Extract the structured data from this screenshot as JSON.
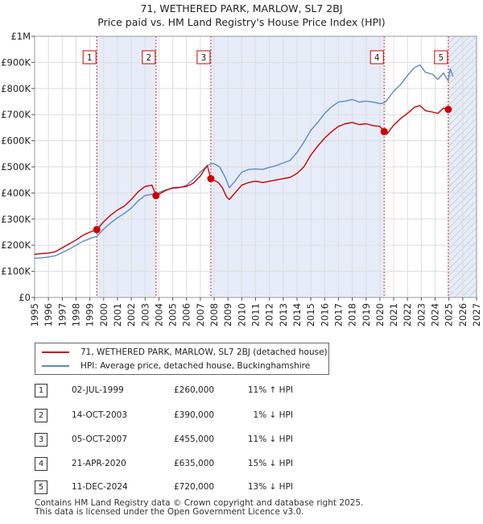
{
  "chart_data": {
    "type": "line",
    "title": "71, WETHERED PARK, MARLOW, SL7 2BJ",
    "subtitle": "Price paid vs. HM Land Registry's House Price Index (HPI)",
    "xlim": [
      1995,
      2027
    ],
    "ylim": [
      0,
      1000000
    ],
    "x_ticks": [
      "1995",
      "1996",
      "1997",
      "1998",
      "1999",
      "2000",
      "2001",
      "2002",
      "2003",
      "2004",
      "2005",
      "2006",
      "2007",
      "2008",
      "2009",
      "2010",
      "2011",
      "2012",
      "2013",
      "2014",
      "2015",
      "2016",
      "2017",
      "2018",
      "2019",
      "2020",
      "2021",
      "2022",
      "2023",
      "2024",
      "2025",
      "2026",
      "2027"
    ],
    "y_ticks": [
      {
        "value": 0,
        "label": "£0"
      },
      {
        "value": 100000,
        "label": "£100K"
      },
      {
        "value": 200000,
        "label": "£200K"
      },
      {
        "value": 300000,
        "label": "£300K"
      },
      {
        "value": 400000,
        "label": "£400K"
      },
      {
        "value": 500000,
        "label": "£500K"
      },
      {
        "value": 600000,
        "label": "£600K"
      },
      {
        "value": 700000,
        "label": "£700K"
      },
      {
        "value": 800000,
        "label": "£800K"
      },
      {
        "value": 900000,
        "label": "£900K"
      },
      {
        "value": 1000000,
        "label": "£1M"
      }
    ],
    "grid": true,
    "shaded_ranges": [
      [
        1999.5,
        2003.79
      ],
      [
        2007.76,
        2020.31
      ],
      [
        2024.95,
        2027
      ]
    ],
    "hatched_from": 2025.0,
    "series": [
      {
        "name": "71, WETHERED PARK, MARLOW, SL7 2BJ (detached house)",
        "color": "#cc0000",
        "points": [
          [
            1995.0,
            165000
          ],
          [
            1995.5,
            168000
          ],
          [
            1996.0,
            170000
          ],
          [
            1996.5,
            175000
          ],
          [
            1997.0,
            190000
          ],
          [
            1997.5,
            205000
          ],
          [
            1998.0,
            220000
          ],
          [
            1998.5,
            238000
          ],
          [
            1999.0,
            250000
          ],
          [
            1999.5,
            260000
          ],
          [
            2000.0,
            290000
          ],
          [
            2000.5,
            315000
          ],
          [
            2001.0,
            335000
          ],
          [
            2001.5,
            350000
          ],
          [
            2002.0,
            375000
          ],
          [
            2002.5,
            405000
          ],
          [
            2003.0,
            425000
          ],
          [
            2003.5,
            430000
          ],
          [
            2003.79,
            390000
          ],
          [
            2004.0,
            395000
          ],
          [
            2004.5,
            410000
          ],
          [
            2005.0,
            420000
          ],
          [
            2005.5,
            422000
          ],
          [
            2006.0,
            425000
          ],
          [
            2006.5,
            438000
          ],
          [
            2007.0,
            465000
          ],
          [
            2007.3,
            490000
          ],
          [
            2007.5,
            505000
          ],
          [
            2007.76,
            455000
          ],
          [
            2008.0,
            448000
          ],
          [
            2008.3,
            440000
          ],
          [
            2008.6,
            420000
          ],
          [
            2008.9,
            385000
          ],
          [
            2009.1,
            375000
          ],
          [
            2009.5,
            400000
          ],
          [
            2010.0,
            430000
          ],
          [
            2010.5,
            440000
          ],
          [
            2011.0,
            445000
          ],
          [
            2011.5,
            440000
          ],
          [
            2012.0,
            445000
          ],
          [
            2012.5,
            450000
          ],
          [
            2013.0,
            455000
          ],
          [
            2013.5,
            460000
          ],
          [
            2014.0,
            475000
          ],
          [
            2014.5,
            500000
          ],
          [
            2015.0,
            545000
          ],
          [
            2015.5,
            580000
          ],
          [
            2016.0,
            610000
          ],
          [
            2016.5,
            635000
          ],
          [
            2017.0,
            655000
          ],
          [
            2017.5,
            665000
          ],
          [
            2018.0,
            670000
          ],
          [
            2018.5,
            662000
          ],
          [
            2019.0,
            665000
          ],
          [
            2019.5,
            658000
          ],
          [
            2020.0,
            655000
          ],
          [
            2020.31,
            635000
          ],
          [
            2020.5,
            625000
          ],
          [
            2021.0,
            660000
          ],
          [
            2021.5,
            685000
          ],
          [
            2022.0,
            705000
          ],
          [
            2022.5,
            728000
          ],
          [
            2022.9,
            735000
          ],
          [
            2023.3,
            715000
          ],
          [
            2023.8,
            710000
          ],
          [
            2024.2,
            705000
          ],
          [
            2024.6,
            725000
          ],
          [
            2024.95,
            720000
          ],
          [
            2025.1,
            715000
          ]
        ]
      },
      {
        "name": "HPI: Average price, detached house, Buckinghamshire",
        "color": "#5b8bc5",
        "points": [
          [
            1995.0,
            150000
          ],
          [
            1995.5,
            152000
          ],
          [
            1996.0,
            155000
          ],
          [
            1996.5,
            160000
          ],
          [
            1997.0,
            172000
          ],
          [
            1997.5,
            185000
          ],
          [
            1998.0,
            200000
          ],
          [
            1998.5,
            215000
          ],
          [
            1999.0,
            225000
          ],
          [
            1999.5,
            234000
          ],
          [
            2000.0,
            262000
          ],
          [
            2000.5,
            285000
          ],
          [
            2001.0,
            305000
          ],
          [
            2001.5,
            322000
          ],
          [
            2002.0,
            342000
          ],
          [
            2002.5,
            370000
          ],
          [
            2003.0,
            390000
          ],
          [
            2003.5,
            395000
          ],
          [
            2003.79,
            394000
          ],
          [
            2004.0,
            402000
          ],
          [
            2004.5,
            412000
          ],
          [
            2005.0,
            418000
          ],
          [
            2005.5,
            420000
          ],
          [
            2006.0,
            430000
          ],
          [
            2006.5,
            452000
          ],
          [
            2007.0,
            480000
          ],
          [
            2007.5,
            505000
          ],
          [
            2007.76,
            512000
          ],
          [
            2008.0,
            512000
          ],
          [
            2008.4,
            500000
          ],
          [
            2008.8,
            460000
          ],
          [
            2009.1,
            420000
          ],
          [
            2009.5,
            445000
          ],
          [
            2010.0,
            480000
          ],
          [
            2010.5,
            490000
          ],
          [
            2011.0,
            492000
          ],
          [
            2011.5,
            490000
          ],
          [
            2012.0,
            498000
          ],
          [
            2012.5,
            505000
          ],
          [
            2013.0,
            515000
          ],
          [
            2013.5,
            525000
          ],
          [
            2014.0,
            555000
          ],
          [
            2014.5,
            595000
          ],
          [
            2015.0,
            640000
          ],
          [
            2015.5,
            670000
          ],
          [
            2016.0,
            705000
          ],
          [
            2016.5,
            730000
          ],
          [
            2017.0,
            748000
          ],
          [
            2017.5,
            752000
          ],
          [
            2018.0,
            758000
          ],
          [
            2018.5,
            748000
          ],
          [
            2019.0,
            752000
          ],
          [
            2019.5,
            748000
          ],
          [
            2020.0,
            742000
          ],
          [
            2020.31,
            745000
          ],
          [
            2020.5,
            755000
          ],
          [
            2021.0,
            790000
          ],
          [
            2021.5,
            815000
          ],
          [
            2022.0,
            850000
          ],
          [
            2022.5,
            880000
          ],
          [
            2022.9,
            890000
          ],
          [
            2023.3,
            862000
          ],
          [
            2023.8,
            855000
          ],
          [
            2024.2,
            835000
          ],
          [
            2024.6,
            860000
          ],
          [
            2024.95,
            830000
          ],
          [
            2025.1,
            875000
          ],
          [
            2025.3,
            845000
          ]
        ]
      }
    ],
    "sales": [
      {
        "label": "1",
        "x": 1999.5,
        "y": 260000
      },
      {
        "label": "2",
        "x": 2003.79,
        "y": 390000
      },
      {
        "label": "3",
        "x": 2007.76,
        "y": 455000
      },
      {
        "label": "4",
        "x": 2020.31,
        "y": 635000
      },
      {
        "label": "5",
        "x": 2024.95,
        "y": 720000
      }
    ]
  },
  "legend": {
    "property_label": "71, WETHERED PARK, MARLOW, SL7 2BJ (detached house)",
    "hpi_label": "HPI: Average price, detached house, Buckinghamshire"
  },
  "sales_table": [
    {
      "num": "1",
      "date": "02-JUL-1999",
      "price": "£260,000",
      "hpi": "11% ↑ HPI"
    },
    {
      "num": "2",
      "date": "14-OCT-2003",
      "price": "£390,000",
      "hpi": "1% ↓ HPI"
    },
    {
      "num": "3",
      "date": "05-OCT-2007",
      "price": "£455,000",
      "hpi": "11% ↓ HPI"
    },
    {
      "num": "4",
      "date": "21-APR-2020",
      "price": "£635,000",
      "hpi": "15% ↓ HPI"
    },
    {
      "num": "5",
      "date": "11-DEC-2024",
      "price": "£720,000",
      "hpi": "13% ↓ HPI"
    }
  ],
  "footer": {
    "line1": "Contains HM Land Registry data © Crown copyright and database right 2025.",
    "line2": "This data is licensed under the Open Government Licence v3.0."
  },
  "colors": {
    "property": "#cc0000",
    "hpi": "#5b8bc5",
    "shade": "#e6ecf8",
    "grid": "#dddddd"
  }
}
